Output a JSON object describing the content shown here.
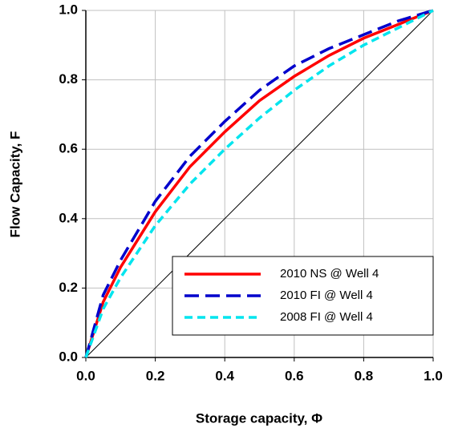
{
  "chart_data": {
    "type": "line",
    "xlabel": "Storage capacity, Φ",
    "ylabel": "Flow Capacity, F",
    "x": [
      0,
      0.05,
      0.1,
      0.2,
      0.3,
      0.4,
      0.5,
      0.6,
      0.7,
      0.8,
      0.9,
      1.0
    ],
    "series": [
      {
        "name": "2010 NS @ Well 4",
        "color": "#ff0000",
        "dash": "solid",
        "values": [
          0,
          0.16,
          0.26,
          0.42,
          0.55,
          0.65,
          0.74,
          0.81,
          0.87,
          0.92,
          0.96,
          1.0
        ]
      },
      {
        "name": "2010 FI @ Well 4",
        "color": "#0000cc",
        "dash": "long",
        "values": [
          0,
          0.18,
          0.28,
          0.45,
          0.58,
          0.68,
          0.77,
          0.84,
          0.89,
          0.93,
          0.97,
          1.0
        ]
      },
      {
        "name": "2008 FI @ Well 4",
        "color": "#00e5ee",
        "dash": "short",
        "values": [
          0,
          0.14,
          0.23,
          0.38,
          0.5,
          0.6,
          0.69,
          0.77,
          0.84,
          0.9,
          0.95,
          1.0
        ]
      }
    ],
    "diagonal": {
      "x": [
        0,
        1
      ],
      "values": [
        0,
        1
      ],
      "color": "#000000"
    },
    "xlim": [
      0,
      1
    ],
    "ylim": [
      0,
      1
    ],
    "xticks": [
      {
        "value": 0,
        "label": "0.0"
      },
      0.2,
      0.4,
      0.6,
      0.8,
      {
        "value": 1,
        "label": "1.0"
      }
    ],
    "yticks": [
      {
        "value": 0,
        "label": "0.0"
      },
      0.2,
      0.4,
      0.6,
      0.8,
      {
        "value": 1,
        "label": "1.0"
      }
    ],
    "grid": true,
    "legend": "lower right"
  }
}
